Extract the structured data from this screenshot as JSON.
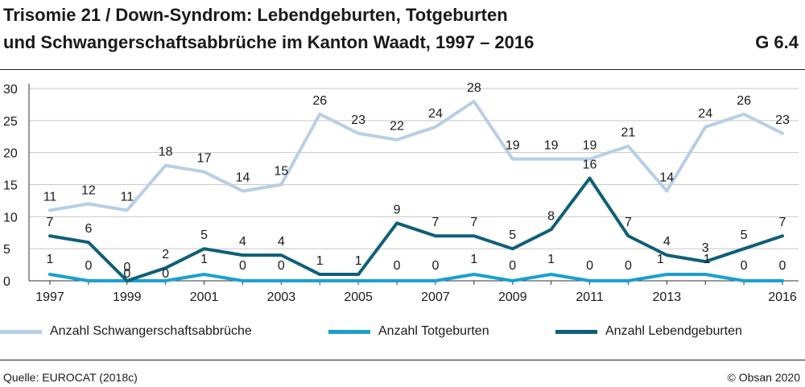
{
  "header": {
    "title_line1": "Trisomie 21 / Down-Syndrom: Lebendgeburten, Totgeburten",
    "title_line2": "und Schwangerschaftsabbrüche im Kanton Waadt, 1997 – 2016",
    "figure_id": "G 6.4"
  },
  "footer": {
    "source": "Quelle: EUROCAT (2018c)",
    "copyright": "© Obsan 2020"
  },
  "chart_data": {
    "type": "line",
    "title": "Trisomie 21 / Down-Syndrom: Lebendgeburten, Totgeburten und Schwangerschaftsabbrüche im Kanton Waadt, 1997 – 2016",
    "xlabel": "",
    "ylabel": "",
    "x": [
      1997,
      1998,
      1999,
      2000,
      2001,
      2002,
      2003,
      2004,
      2005,
      2006,
      2007,
      2008,
      2009,
      2010,
      2011,
      2012,
      2013,
      2014,
      2015,
      2016
    ],
    "x_tick_labels": [
      "1997",
      "1999",
      "2001",
      "2003",
      "2005",
      "2007",
      "2009",
      "2011",
      "2013",
      "2016"
    ],
    "x_tick_values": [
      1997,
      1999,
      2001,
      2003,
      2005,
      2007,
      2009,
      2011,
      2013,
      2016
    ],
    "y_ticks": [
      "0",
      "5",
      "10",
      "15",
      "20",
      "25",
      "30"
    ],
    "ylim": [
      0,
      30
    ],
    "grid": true,
    "legend_position": "bottom",
    "series": [
      {
        "name": "Anzahl Schwangerschaftsabbrüche",
        "color": "#b7cfe6",
        "values": [
          11,
          12,
          11,
          18,
          17,
          14,
          15,
          26,
          23,
          22,
          24,
          28,
          19,
          19,
          19,
          21,
          14,
          24,
          26,
          23
        ],
        "labels": [
          "11",
          "12",
          "11",
          "18",
          "17",
          "14",
          "15",
          "26",
          "23",
          "22",
          "24",
          "28",
          "19",
          "19",
          "19",
          "21",
          "14",
          "24",
          "26",
          "23"
        ]
      },
      {
        "name": "Anzahl Totgeburten",
        "color": "#1aa0cf",
        "values": [
          1,
          0,
          0,
          0,
          1,
          0,
          0,
          0,
          0,
          0,
          0,
          1,
          0,
          1,
          0,
          0,
          1,
          1,
          0,
          0
        ],
        "labels": [
          "1",
          "0",
          "0",
          "0",
          "1",
          "0",
          "0",
          "",
          "",
          "0",
          "0",
          "1",
          "0",
          "1",
          "0",
          "0",
          "1",
          "1",
          "0",
          "0"
        ]
      },
      {
        "name": "Anzahl Lebendgeburten",
        "color": "#0f5f79",
        "values": [
          7,
          6,
          0,
          2,
          5,
          4,
          4,
          1,
          1,
          9,
          7,
          7,
          5,
          8,
          16,
          7,
          4,
          3,
          5,
          7
        ],
        "labels": [
          "7",
          "6",
          "0",
          "2",
          "5",
          "4",
          "4",
          "1",
          "1",
          "9",
          "7",
          "7",
          "5",
          "8",
          "16",
          "7",
          "4",
          "3",
          "5",
          "7"
        ]
      }
    ]
  }
}
